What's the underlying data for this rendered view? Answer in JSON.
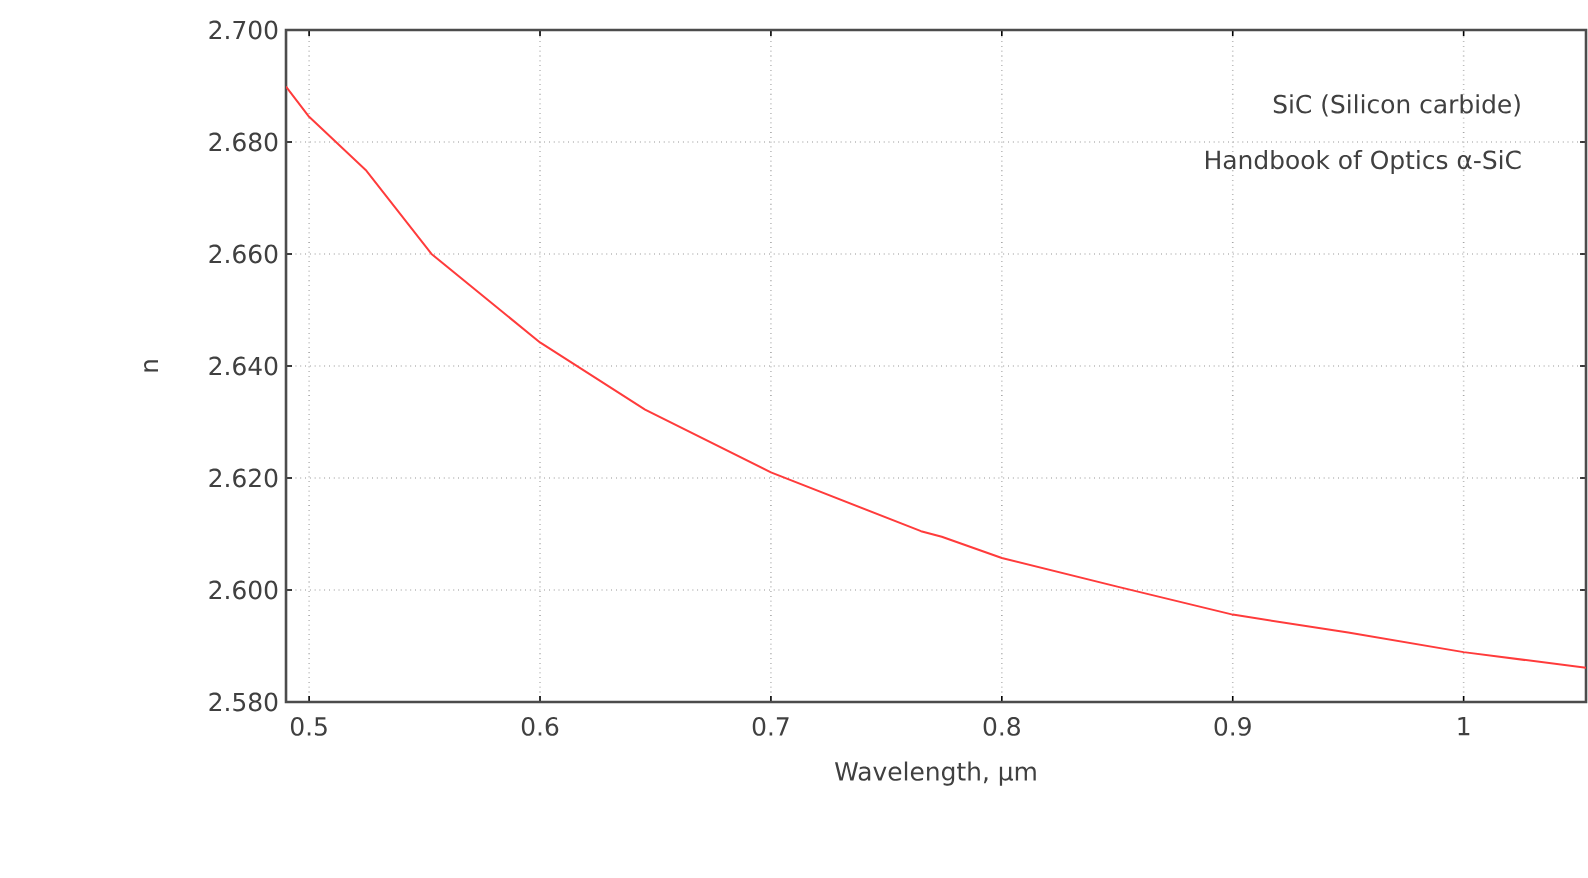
{
  "chart_data": {
    "type": "line",
    "xlabel": "Wavelength, µm",
    "ylabel": "n",
    "annotations": [
      "SiC (Silicon carbide)",
      "Handbook of Optics  α-SiC"
    ],
    "x": [
      0.49,
      0.5,
      0.5245,
      0.553,
      0.6,
      0.6455,
      0.7,
      0.765,
      0.774,
      0.8,
      0.85,
      0.9,
      0.95,
      1.0,
      1.053
    ],
    "series": [
      {
        "color": "#ff3b3b",
        "values": [
          2.6899,
          2.6845,
          2.675,
          2.66,
          2.6442,
          2.6322,
          2.621,
          2.6105,
          2.6095,
          2.6057,
          2.6006,
          2.5956,
          2.5924,
          2.5889,
          2.5861
        ]
      }
    ],
    "xlim": [
      0.49,
      1.053
    ],
    "ylim": [
      2.58,
      2.7
    ],
    "xticks": [
      0.5,
      0.6,
      0.7,
      0.8,
      0.9,
      1
    ],
    "yticks": [
      {
        "value": 2.58,
        "label": "2.580"
      },
      {
        "value": 2.6,
        "label": "2.600"
      },
      {
        "value": 2.62,
        "label": "2.620"
      },
      {
        "value": 2.64,
        "label": "2.640"
      },
      {
        "value": 2.66,
        "label": "2.660"
      },
      {
        "value": 2.68,
        "label": "2.680"
      },
      {
        "value": 2.7,
        "label": "2.700"
      }
    ],
    "grid": true,
    "marker": "none",
    "line_style": "solid"
  }
}
